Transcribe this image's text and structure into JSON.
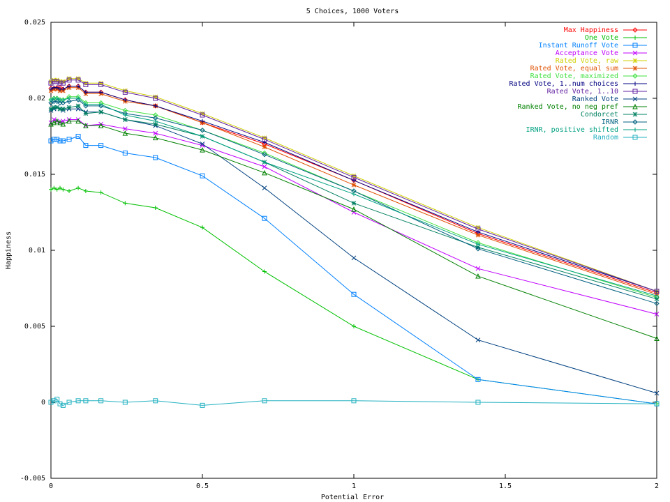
{
  "chart_data": {
    "type": "line",
    "title": "5 Choices, 1000 Voters",
    "xlabel": "Potential Error",
    "ylabel": "Happiness",
    "xlim": [
      0,
      2
    ],
    "ylim": [
      -0.005,
      0.025
    ],
    "xticks": [
      0,
      0.5,
      1,
      1.5,
      2
    ],
    "xtick_labels": [
      "0",
      "0.5",
      "1",
      "1.5",
      "2"
    ],
    "yticks": [
      -0.005,
      0,
      0.005,
      0.01,
      0.015,
      0.02,
      0.025
    ],
    "ytick_labels": [
      "-0.005",
      "0",
      "0.005",
      "0.01",
      "0.015",
      "0.02",
      "0.025"
    ],
    "grid": false,
    "legend_position": "top-right",
    "x": [
      0,
      0.01,
      0.02,
      0.03,
      0.04,
      0.06,
      0.09,
      0.115,
      0.165,
      0.245,
      0.345,
      0.5,
      0.705,
      1.0,
      1.41,
      2.0
    ],
    "series": [
      {
        "name": "Max Happiness",
        "color": "#ff0000",
        "marker": "diamond",
        "values": [
          0.02065,
          0.02065,
          0.0207,
          0.0207,
          0.0206,
          0.0208,
          0.0208,
          0.0204,
          0.0204,
          0.0199,
          0.0195,
          0.0184,
          0.017,
          0.0146,
          0.0111,
          0.0072
        ]
      },
      {
        "name": "One Vote",
        "color": "#00c000",
        "marker": "plus",
        "values": [
          0.014,
          0.0141,
          0.014,
          0.0141,
          0.014,
          0.0139,
          0.0141,
          0.0139,
          0.0138,
          0.0131,
          0.0128,
          0.0115,
          0.0086,
          0.005,
          0.0015,
          -0.0001
        ]
      },
      {
        "name": "Instant Runoff Vote",
        "color": "#0080ff",
        "marker": "square",
        "values": [
          0.0172,
          0.0173,
          0.0173,
          0.0172,
          0.0172,
          0.0173,
          0.0175,
          0.0169,
          0.0169,
          0.0164,
          0.0161,
          0.0149,
          0.0121,
          0.0071,
          0.0015,
          -0.0001
        ]
      },
      {
        "name": "Acceptance Vote",
        "color": "#c000ff",
        "marker": "cross",
        "values": [
          0.0184,
          0.0186,
          0.0185,
          0.0184,
          0.0185,
          0.0186,
          0.0186,
          0.0182,
          0.0183,
          0.018,
          0.0177,
          0.0169,
          0.0155,
          0.0125,
          0.0088,
          0.0058
        ]
      },
      {
        "name": "Rated Vote, raw",
        "color": "#d0d000",
        "marker": "star",
        "values": [
          0.0211,
          0.0212,
          0.0212,
          0.0211,
          0.0211,
          0.0213,
          0.0213,
          0.021,
          0.021,
          0.0205,
          0.0201,
          0.019,
          0.0174,
          0.0149,
          0.0115,
          0.0073
        ]
      },
      {
        "name": "Rated Vote, equal sum",
        "color": "#e05000",
        "marker": "star",
        "values": [
          0.0205,
          0.0206,
          0.0206,
          0.0205,
          0.0205,
          0.0207,
          0.0207,
          0.0203,
          0.0203,
          0.0198,
          0.0195,
          0.0184,
          0.0168,
          0.0143,
          0.011,
          0.0071
        ]
      },
      {
        "name": "Rated Vote, maximized",
        "color": "#40e040",
        "marker": "diamond",
        "values": [
          0.0199,
          0.02,
          0.02,
          0.0199,
          0.0199,
          0.0201,
          0.0201,
          0.0197,
          0.0197,
          0.0192,
          0.0189,
          0.0179,
          0.0164,
          0.0139,
          0.0105,
          0.0069
        ]
      },
      {
        "name": "Rated Vote, 1..num choices",
        "color": "#000080",
        "marker": "plus",
        "values": [
          0.0206,
          0.0207,
          0.0207,
          0.0206,
          0.0206,
          0.0208,
          0.0208,
          0.0204,
          0.0204,
          0.0199,
          0.0195,
          0.0185,
          0.0171,
          0.0146,
          0.0112,
          0.0073
        ]
      },
      {
        "name": "Rated Vote, 1..10",
        "color": "#6020a0",
        "marker": "square",
        "values": [
          0.021,
          0.0211,
          0.0211,
          0.021,
          0.021,
          0.0212,
          0.0212,
          0.0209,
          0.0209,
          0.0204,
          0.02,
          0.0189,
          0.0173,
          0.0148,
          0.0114,
          0.0073
        ]
      },
      {
        "name": "Ranked Vote",
        "color": "#004080",
        "marker": "cross",
        "values": [
          0.0192,
          0.0193,
          0.0194,
          0.0193,
          0.0192,
          0.0193,
          0.0193,
          0.0191,
          0.0191,
          0.0186,
          0.0182,
          0.017,
          0.0141,
          0.0095,
          0.0041,
          0.0006
        ]
      },
      {
        "name": "Ranked Vote, no neg pref",
        "color": "#008000",
        "marker": "triangle",
        "values": [
          0.0183,
          0.0184,
          0.0185,
          0.0184,
          0.0183,
          0.0185,
          0.0185,
          0.0182,
          0.0182,
          0.0177,
          0.0174,
          0.0166,
          0.0151,
          0.0127,
          0.0083,
          0.0042
        ]
      },
      {
        "name": "Condorcet",
        "color": "#008060",
        "marker": "star",
        "values": [
          0.0193,
          0.0194,
          0.0194,
          0.0193,
          0.0193,
          0.0194,
          0.0195,
          0.019,
          0.0191,
          0.0186,
          0.0183,
          0.0175,
          0.0158,
          0.0131,
          0.0102,
          0.0068
        ]
      },
      {
        "name": "IRNR",
        "color": "#006080",
        "marker": "diamond",
        "values": [
          0.0197,
          0.0198,
          0.0198,
          0.0197,
          0.0197,
          0.0198,
          0.0199,
          0.0195,
          0.0195,
          0.019,
          0.0187,
          0.0179,
          0.0163,
          0.0139,
          0.0101,
          0.0065
        ]
      },
      {
        "name": "IRNR, positive shifted",
        "color": "#00a080",
        "marker": "plus",
        "values": [
          0.0199,
          0.02,
          0.02,
          0.0199,
          0.0199,
          0.02,
          0.02,
          0.0196,
          0.0196,
          0.0189,
          0.0185,
          0.0175,
          0.0158,
          0.0137,
          0.0104,
          0.007
        ]
      },
      {
        "name": "Random",
        "color": "#20b0c0",
        "marker": "square",
        "values": [
          0.0,
          0.0001,
          0.0002,
          -0.0001,
          -0.0002,
          0.0,
          0.0001,
          0.0001,
          0.0001,
          0.0,
          0.0001,
          -0.0002,
          0.0001,
          0.0001,
          0.0,
          -0.0001
        ]
      }
    ]
  }
}
